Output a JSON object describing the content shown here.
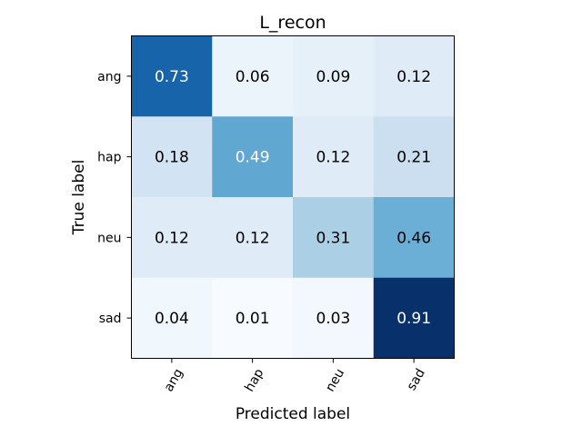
{
  "chart_data": {
    "type": "heatmap",
    "title": "L_recon",
    "xlabel": "Predicted label",
    "ylabel": "True label",
    "row_labels": [
      "ang",
      "hap",
      "neu",
      "sad"
    ],
    "col_labels": [
      "ang",
      "hap",
      "neu",
      "sad"
    ],
    "values": [
      [
        0.73,
        0.06,
        0.09,
        0.12
      ],
      [
        0.18,
        0.49,
        0.12,
        0.21
      ],
      [
        0.12,
        0.12,
        0.31,
        0.46
      ],
      [
        0.04,
        0.01,
        0.03,
        0.91
      ]
    ],
    "value_labels": [
      [
        "0.73",
        "0.06",
        "0.09",
        "0.12"
      ],
      [
        "0.18",
        "0.49",
        "0.12",
        "0.21"
      ],
      [
        "0.12",
        "0.12",
        "0.31",
        "0.46"
      ],
      [
        "0.04",
        "0.01",
        "0.03",
        "0.91"
      ]
    ],
    "colormap": "Blues",
    "vmin": 0.01,
    "vmax": 0.91,
    "x_tick_rotation_deg": 60,
    "colors": {
      "low": "#f7fbff",
      "high": "#08306b",
      "text_dark": "#000000",
      "text_light": "#ffffff"
    }
  }
}
